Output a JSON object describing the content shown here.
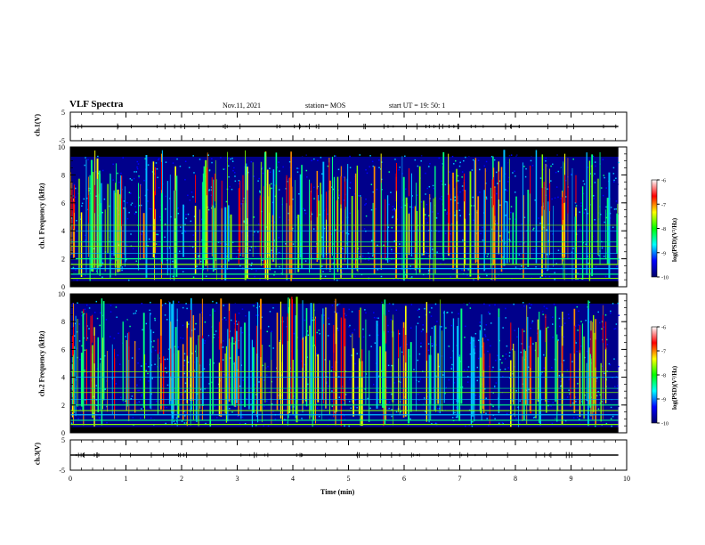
{
  "header": {
    "title": "VLF Spectra",
    "date": "Nov.11, 2021",
    "station": "station= MOS",
    "start_ut": "start UT =  19: 50: 1"
  },
  "colors": {
    "background": "#ffffff",
    "axis": "#000000",
    "colormap": [
      "#000000",
      "#00008b",
      "#0000ff",
      "#00bfff",
      "#00ff7f",
      "#7fff00",
      "#ffff00",
      "#ff8c00",
      "#ff0000",
      "#ffffff"
    ]
  },
  "chart_data": [
    {
      "type": "line",
      "name": "ch1-waveform",
      "ylabel": "ch.1(V)",
      "ylim": [
        -5,
        5
      ],
      "yticks": [
        "5",
        "-5"
      ],
      "baseline_value": 0
    },
    {
      "type": "heatmap",
      "name": "ch1-spectrogram",
      "ylabel": "ch.1 Frequency (kHz)",
      "ylim": [
        0,
        10
      ],
      "yticks": [
        "0",
        "2",
        "4",
        "6",
        "8",
        "10"
      ],
      "colorbar": {
        "label": "log(PSD)(V²/Hz)",
        "range": [
          -10,
          -6
        ],
        "ticks": [
          "-6",
          "-7",
          "-8",
          "-9",
          "-10"
        ]
      }
    },
    {
      "type": "heatmap",
      "name": "ch2-spectrogram",
      "ylabel": "ch.2 Frequency (kHz)",
      "ylim": [
        0,
        10
      ],
      "yticks": [
        "0",
        "2",
        "4",
        "6",
        "8",
        "10"
      ],
      "colorbar": {
        "label": "log(PSD)(V²/Hz)",
        "range": [
          -10,
          -6
        ],
        "ticks": [
          "-6",
          "-7",
          "-8",
          "-9",
          "-10"
        ]
      }
    },
    {
      "type": "line",
      "name": "ch3-waveform",
      "ylabel": "ch.3(V)",
      "ylim": [
        -5,
        5
      ],
      "yticks": [
        "5",
        "-5"
      ],
      "baseline_value": 0
    }
  ],
  "xaxis": {
    "label": "Time (min)",
    "xlim": [
      0,
      10
    ],
    "ticks": [
      "0",
      "1",
      "2",
      "3",
      "4",
      "5",
      "6",
      "7",
      "8",
      "9",
      "10"
    ],
    "data_end": 9.85
  }
}
